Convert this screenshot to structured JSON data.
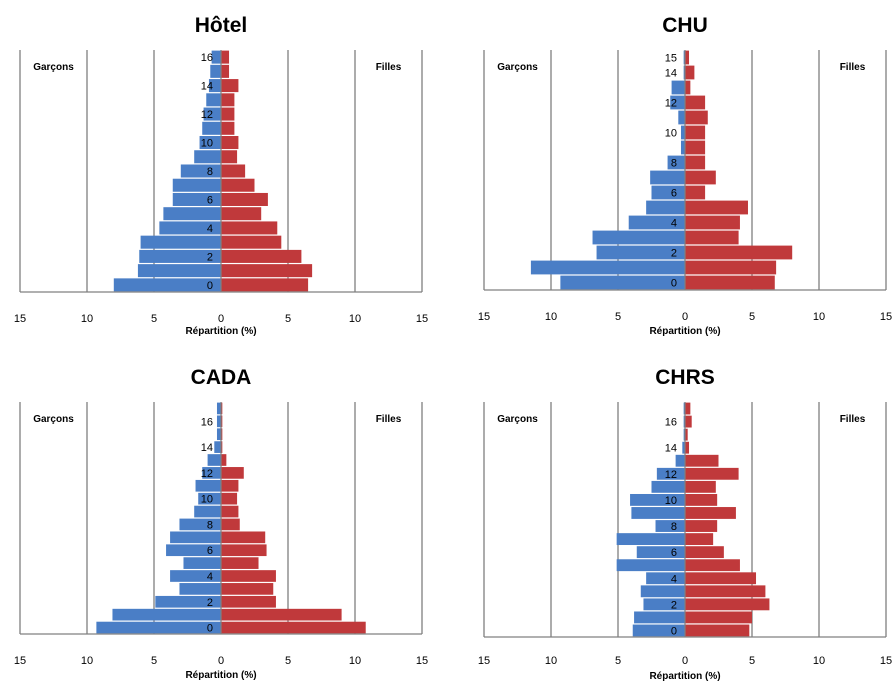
{
  "colors": {
    "boys": "#4a7ec6",
    "girls": "#c0393b",
    "axis": "#808080",
    "grid": "#7f7f7f"
  },
  "chart_data": [
    {
      "type": "bar",
      "orientation": "horizontal-population-pyramid",
      "title": "Hôtel",
      "xlabel": "Répartition (%)",
      "xlim": [
        -15,
        15
      ],
      "x_ticks": [
        "15",
        "10",
        "5",
        "0",
        "5",
        "10",
        "15"
      ],
      "y_tick_labels": [
        "0",
        "2",
        "4",
        "6",
        "8",
        "10",
        "12",
        "14",
        "16"
      ],
      "ages": [
        0,
        1,
        2,
        3,
        4,
        5,
        6,
        7,
        8,
        9,
        10,
        11,
        12,
        13,
        14,
        15,
        16
      ],
      "grid": true,
      "series": [
        {
          "name": "Garçons",
          "values": [
            8.0,
            6.2,
            6.1,
            6.0,
            4.6,
            4.3,
            3.6,
            3.6,
            3.0,
            2.0,
            1.6,
            1.4,
            1.3,
            1.1,
            0.9,
            0.8,
            0.7
          ]
        },
        {
          "name": "Filles",
          "values": [
            6.5,
            6.8,
            6.0,
            4.5,
            4.2,
            3.0,
            3.5,
            2.5,
            1.8,
            1.2,
            1.3,
            1.0,
            1.0,
            1.0,
            1.3,
            0.6,
            0.6
          ]
        }
      ]
    },
    {
      "type": "bar",
      "orientation": "horizontal-population-pyramid",
      "title": "CHU",
      "xlabel": "Répartition (%)",
      "xlim": [
        -15,
        15
      ],
      "x_ticks": [
        "15",
        "10",
        "5",
        "0",
        "5",
        "10",
        "15"
      ],
      "y_tick_labels": [
        "0",
        "2",
        "4",
        "6",
        "8",
        "10",
        "12",
        "14",
        "15"
      ],
      "ages": [
        0,
        1,
        2,
        3,
        4,
        5,
        6,
        7,
        8,
        9,
        10,
        11,
        12,
        13,
        14,
        15
      ],
      "grid": true,
      "series": [
        {
          "name": "Garçons",
          "values": [
            9.3,
            11.5,
            6.6,
            6.9,
            4.2,
            2.9,
            2.5,
            2.6,
            1.3,
            0.3,
            0.3,
            0.5,
            1.1,
            1.0,
            0.1,
            0.1
          ]
        },
        {
          "name": "Filles",
          "values": [
            6.7,
            6.8,
            8.0,
            4.0,
            4.1,
            4.7,
            1.5,
            2.3,
            1.5,
            1.5,
            1.5,
            1.7,
            1.5,
            0.4,
            0.7,
            0.3
          ]
        }
      ]
    },
    {
      "type": "bar",
      "orientation": "horizontal-population-pyramid",
      "title": "CADA",
      "xlabel": "Répartition (%)",
      "xlim": [
        -15,
        15
      ],
      "x_ticks": [
        "15",
        "10",
        "5",
        "0",
        "5",
        "10",
        "15"
      ],
      "y_tick_labels": [
        "0",
        "2",
        "4",
        "6",
        "8",
        "10",
        "12",
        "14",
        "16"
      ],
      "ages": [
        0,
        1,
        2,
        3,
        4,
        5,
        6,
        7,
        8,
        9,
        10,
        11,
        12,
        13,
        14,
        15,
        16,
        17
      ],
      "grid": true,
      "series": [
        {
          "name": "Garçons",
          "values": [
            9.3,
            8.1,
            4.9,
            3.1,
            3.8,
            2.8,
            4.1,
            3.8,
            3.1,
            2.0,
            1.7,
            1.9,
            1.4,
            1.0,
            0.5,
            0.3,
            0.3,
            0.3
          ]
        },
        {
          "name": "Filles",
          "values": [
            10.8,
            9.0,
            4.1,
            3.9,
            4.1,
            2.8,
            3.4,
            3.3,
            1.4,
            1.3,
            1.2,
            1.3,
            1.7,
            0.4,
            0.1,
            0.1,
            0.1,
            0.1
          ]
        }
      ]
    },
    {
      "type": "bar",
      "orientation": "horizontal-population-pyramid",
      "title": "CHRS",
      "xlabel": "Répartition (%)",
      "xlim": [
        -15,
        15
      ],
      "x_ticks": [
        "15",
        "10",
        "5",
        "0",
        "5",
        "10",
        "15"
      ],
      "y_tick_labels": [
        "0",
        "2",
        "4",
        "6",
        "8",
        "10",
        "12",
        "14",
        "16"
      ],
      "ages": [
        0,
        1,
        2,
        3,
        4,
        5,
        6,
        7,
        8,
        9,
        10,
        11,
        12,
        13,
        14,
        15,
        16,
        17
      ],
      "grid": true,
      "series": [
        {
          "name": "Garçons",
          "values": [
            3.9,
            3.8,
            3.1,
            3.3,
            2.9,
            5.1,
            3.6,
            5.1,
            2.2,
            4.0,
            4.1,
            2.5,
            2.1,
            0.7,
            0.2,
            0.1,
            0.1,
            0.1
          ]
        },
        {
          "name": "Filles",
          "values": [
            4.8,
            5.0,
            6.3,
            6.0,
            5.3,
            4.1,
            2.9,
            2.1,
            2.4,
            3.8,
            2.4,
            2.3,
            4.0,
            2.5,
            0.3,
            0.2,
            0.5,
            0.4
          ]
        }
      ]
    }
  ]
}
